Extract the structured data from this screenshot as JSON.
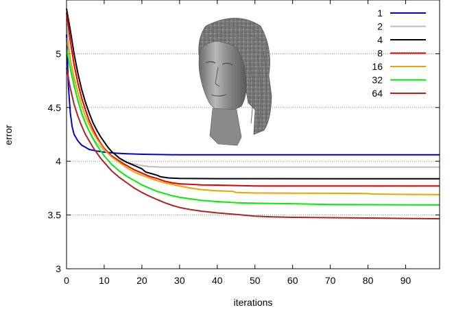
{
  "chart_data": {
    "type": "line",
    "title": "",
    "xlabel": "iterations",
    "ylabel": "error",
    "xlim": [
      0,
      99
    ],
    "ylim": [
      3,
      5.5
    ],
    "xticks": [
      0,
      10,
      20,
      30,
      40,
      50,
      60,
      70,
      80,
      90
    ],
    "yticks": [
      3,
      3.5,
      4,
      4.5,
      5
    ],
    "grid": "horizontal dotted at y ticks",
    "legend_position": "top-right",
    "inset_image": "sculpted head of a woman (grey 3D mesh render)",
    "series": [
      {
        "name": "1",
        "color": "#0000cc",
        "points": [
          [
            0,
            5.18
          ],
          [
            0.5,
            4.7
          ],
          [
            1,
            4.45
          ],
          [
            1.5,
            4.32
          ],
          [
            2,
            4.25
          ],
          [
            3,
            4.19
          ],
          [
            4,
            4.15
          ],
          [
            5,
            4.13
          ],
          [
            6,
            4.11
          ],
          [
            8,
            4.095
          ],
          [
            10,
            4.085
          ],
          [
            13,
            4.075
          ],
          [
            16,
            4.07
          ],
          [
            20,
            4.065
          ],
          [
            30,
            4.06
          ],
          [
            50,
            4.06
          ],
          [
            99,
            4.06
          ]
        ]
      },
      {
        "name": "2",
        "color": "#bbbbbb",
        "points": [
          [
            0,
            5.28
          ],
          [
            1,
            4.95
          ],
          [
            2,
            4.72
          ],
          [
            3,
            4.56
          ],
          [
            4,
            4.44
          ],
          [
            5,
            4.35
          ],
          [
            6,
            4.28
          ],
          [
            7,
            4.22
          ],
          [
            8,
            4.17
          ],
          [
            10,
            4.1
          ],
          [
            12,
            4.05
          ],
          [
            14,
            4.01
          ],
          [
            17,
            3.98
          ],
          [
            20,
            3.96
          ],
          [
            22,
            3.95
          ],
          [
            25,
            3.945
          ],
          [
            30,
            3.945
          ],
          [
            99,
            3.945
          ]
        ]
      },
      {
        "name": "4",
        "color": "#000000",
        "points": [
          [
            0,
            5.42
          ],
          [
            1,
            5.22
          ],
          [
            2,
            5.0
          ],
          [
            3,
            4.82
          ],
          [
            4,
            4.67
          ],
          [
            5,
            4.55
          ],
          [
            6,
            4.45
          ],
          [
            7,
            4.36
          ],
          [
            8,
            4.29
          ],
          [
            9,
            4.23
          ],
          [
            10,
            4.18
          ],
          [
            11,
            4.13
          ],
          [
            12,
            4.09
          ],
          [
            13,
            4.06
          ],
          [
            14,
            4.03
          ],
          [
            15,
            4.01
          ],
          [
            16,
            3.99
          ],
          [
            17,
            3.975
          ],
          [
            18,
            3.96
          ],
          [
            19,
            3.945
          ],
          [
            20,
            3.93
          ],
          [
            21,
            3.9
          ],
          [
            23,
            3.88
          ],
          [
            24,
            3.87
          ],
          [
            25,
            3.855
          ],
          [
            27,
            3.845
          ],
          [
            30,
            3.84
          ],
          [
            40,
            3.838
          ],
          [
            99,
            3.837
          ]
        ]
      },
      {
        "name": "8",
        "color": "#dd0000",
        "points": [
          [
            0,
            5.38
          ],
          [
            1,
            5.12
          ],
          [
            2,
            4.9
          ],
          [
            3,
            4.73
          ],
          [
            4,
            4.59
          ],
          [
            5,
            4.48
          ],
          [
            6,
            4.38
          ],
          [
            7,
            4.3
          ],
          [
            8,
            4.23
          ],
          [
            9,
            4.17
          ],
          [
            10,
            4.12
          ],
          [
            12,
            4.05
          ],
          [
            14,
            4.0
          ],
          [
            16,
            3.96
          ],
          [
            18,
            3.92
          ],
          [
            20,
            3.89
          ],
          [
            22,
            3.86
          ],
          [
            24,
            3.84
          ],
          [
            26,
            3.815
          ],
          [
            28,
            3.8
          ],
          [
            30,
            3.79
          ],
          [
            33,
            3.785
          ],
          [
            36,
            3.78
          ],
          [
            40,
            3.778
          ],
          [
            44,
            3.775
          ],
          [
            50,
            3.77
          ],
          [
            60,
            3.77
          ],
          [
            99,
            3.77
          ]
        ]
      },
      {
        "name": "16",
        "color": "#f0a000",
        "points": [
          [
            0,
            5.15
          ],
          [
            1,
            4.95
          ],
          [
            2,
            4.78
          ],
          [
            3,
            4.64
          ],
          [
            4,
            4.52
          ],
          [
            5,
            4.42
          ],
          [
            6,
            4.34
          ],
          [
            7,
            4.27
          ],
          [
            8,
            4.21
          ],
          [
            9,
            4.16
          ],
          [
            10,
            4.11
          ],
          [
            12,
            4.04
          ],
          [
            14,
            3.99
          ],
          [
            16,
            3.94
          ],
          [
            18,
            3.9
          ],
          [
            20,
            3.87
          ],
          [
            22,
            3.845
          ],
          [
            24,
            3.82
          ],
          [
            26,
            3.8
          ],
          [
            28,
            3.785
          ],
          [
            30,
            3.77
          ],
          [
            33,
            3.75
          ],
          [
            36,
            3.735
          ],
          [
            40,
            3.725
          ],
          [
            44,
            3.72
          ],
          [
            45,
            3.71
          ],
          [
            50,
            3.705
          ],
          [
            60,
            3.703
          ],
          [
            70,
            3.702
          ],
          [
            80,
            3.7
          ],
          [
            81,
            3.695
          ],
          [
            90,
            3.692
          ],
          [
            99,
            3.69
          ]
        ]
      },
      {
        "name": "32",
        "color": "#00ee00",
        "points": [
          [
            0,
            5.05
          ],
          [
            1,
            4.86
          ],
          [
            2,
            4.7
          ],
          [
            3,
            4.57
          ],
          [
            4,
            4.45
          ],
          [
            5,
            4.36
          ],
          [
            6,
            4.28
          ],
          [
            7,
            4.21
          ],
          [
            8,
            4.15
          ],
          [
            9,
            4.1
          ],
          [
            10,
            4.05
          ],
          [
            12,
            3.97
          ],
          [
            14,
            3.91
          ],
          [
            16,
            3.86
          ],
          [
            18,
            3.82
          ],
          [
            20,
            3.78
          ],
          [
            22,
            3.75
          ],
          [
            24,
            3.72
          ],
          [
            26,
            3.7
          ],
          [
            28,
            3.68
          ],
          [
            30,
            3.665
          ],
          [
            33,
            3.65
          ],
          [
            36,
            3.635
          ],
          [
            40,
            3.625
          ],
          [
            45,
            3.615
          ],
          [
            50,
            3.61
          ],
          [
            60,
            3.605
          ],
          [
            70,
            3.598
          ],
          [
            80,
            3.596
          ],
          [
            90,
            3.595
          ],
          [
            99,
            3.594
          ]
        ]
      },
      {
        "name": "64",
        "color": "#aa2222",
        "points": [
          [
            0,
            4.87
          ],
          [
            1,
            4.68
          ],
          [
            2,
            4.53
          ],
          [
            3,
            4.42
          ],
          [
            4,
            4.33
          ],
          [
            5,
            4.25
          ],
          [
            6,
            4.19
          ],
          [
            7,
            4.13
          ],
          [
            8,
            4.08
          ],
          [
            9,
            4.03
          ],
          [
            10,
            3.99
          ],
          [
            12,
            3.91
          ],
          [
            14,
            3.85
          ],
          [
            16,
            3.8
          ],
          [
            18,
            3.75
          ],
          [
            20,
            3.71
          ],
          [
            22,
            3.675
          ],
          [
            24,
            3.645
          ],
          [
            26,
            3.615
          ],
          [
            28,
            3.59
          ],
          [
            30,
            3.57
          ],
          [
            33,
            3.55
          ],
          [
            36,
            3.535
          ],
          [
            40,
            3.52
          ],
          [
            45,
            3.505
          ],
          [
            50,
            3.49
          ],
          [
            55,
            3.482
          ],
          [
            60,
            3.478
          ],
          [
            70,
            3.475
          ],
          [
            80,
            3.472
          ],
          [
            90,
            3.468
          ],
          [
            99,
            3.465
          ]
        ]
      }
    ]
  }
}
